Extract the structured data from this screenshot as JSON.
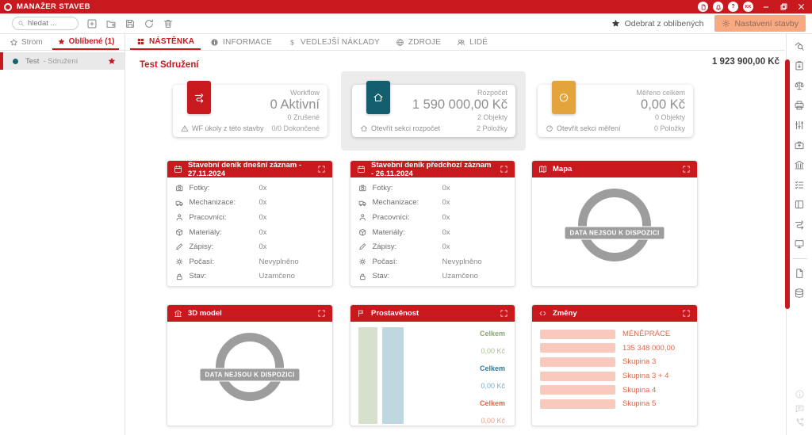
{
  "colors": {
    "primary": "#c8191f",
    "settings_button_bg": "#f7a981",
    "teal": "#135f6f",
    "amber": "#e4a43c"
  },
  "titlebar": {
    "app_title": "MANAŽER STAVEB",
    "help_label": "?",
    "avatar_initials": "KK"
  },
  "toolbar": {
    "search_placeholder": "hledat ...",
    "remove_favorite_label": "Odebrat z oblíbených",
    "settings_label": "Nastavení stavby"
  },
  "sidebar": {
    "tab_tree": "Strom",
    "tab_favorites": "Oblíbené (1)",
    "item_name": "Test",
    "item_type": "- Sdružení"
  },
  "main_tabs": {
    "dashboard": "NÁSTĚNKA",
    "information": "INFORMACE",
    "side_costs": "VEDLEJŠÍ NÁKLADY",
    "resources": "ZDROJE",
    "people": "LIDÉ"
  },
  "page": {
    "project_title": "Test Sdružení",
    "total_amount": "1 923 900,00 Kč"
  },
  "summary_cards": [
    {
      "label": "Workflow",
      "value": "0 Aktivní",
      "stat1": "0 Zrušené",
      "stat2": "0/0 Dokončené",
      "footer": "WF úkoly z této stavby",
      "accent": "#c8191f"
    },
    {
      "label": "Rozpočet",
      "value": "1 590 000,00 Kč",
      "stat1": "2 Objekty",
      "stat2": "2 Položky",
      "footer": "Otevřít sekci rozpočet",
      "accent": "#135f6f"
    },
    {
      "label": "Měřeno celkem",
      "value": "0,00 Kč",
      "stat1": "0 Objekty",
      "stat2": "0 Položky",
      "footer": "Otevřít sekci měření",
      "accent": "#e4a43c"
    }
  ],
  "diary_cards": [
    {
      "title": "Stavební deník dnešní záznam - 27.11.2024",
      "rows": [
        {
          "label": "Fotky:",
          "value": "0x"
        },
        {
          "label": "Mechanizace:",
          "value": "0x"
        },
        {
          "label": "Pracovníci:",
          "value": "0x"
        },
        {
          "label": "Materiály:",
          "value": "0x"
        },
        {
          "label": "Zápisy:",
          "value": "0x"
        },
        {
          "label": "Počasí:",
          "value": "Nevyplněno"
        },
        {
          "label": "Stav:",
          "value": "Uzamčeno"
        }
      ]
    },
    {
      "title": "Stavební deník předchozí záznam - 26.11.2024",
      "rows": [
        {
          "label": "Fotky:",
          "value": "0x"
        },
        {
          "label": "Mechanizace:",
          "value": "0x"
        },
        {
          "label": "Pracovníci:",
          "value": "0x"
        },
        {
          "label": "Materiály:",
          "value": "0x"
        },
        {
          "label": "Zápisy:",
          "value": "0x"
        },
        {
          "label": "Počasí:",
          "value": "Nevyplněno"
        },
        {
          "label": "Stav:",
          "value": "Uzamčeno"
        }
      ]
    }
  ],
  "map_card": {
    "title": "Mapa",
    "empty_text": "DATA NEJSOU K DISPOZICI"
  },
  "model_card": {
    "title": "3D model",
    "empty_text": "DATA NEJSOU K DISPOZICI"
  },
  "prostavenost_card": {
    "title": "Prostavěnost",
    "chart_data": {
      "type": "bar",
      "bars": [
        {
          "name": "Celkem",
          "color": "#d6e0cb"
        },
        {
          "name": "Celkem",
          "color": "#bfd8e0"
        }
      ],
      "entries": [
        {
          "label": "Celkem",
          "value": "0,00 Kč",
          "label_color": "#8aa873",
          "value_color": "#a9c194"
        },
        {
          "label": "Celkem",
          "value": "0,00 Kč",
          "label_color": "#2d7d99",
          "value_color": "#74aec0"
        },
        {
          "label": "Celkem",
          "value": "0,00 Kč",
          "label_color": "#e2654a",
          "value_color": "#ef9d86"
        }
      ]
    }
  },
  "zmeny_card": {
    "title": "Změny",
    "chart_data": {
      "type": "bar",
      "bar_color": "#f9c9bd",
      "label_color": "#e2654a",
      "rows": [
        "MÉNĚPRÁCE",
        "135 348 000,00",
        "Skupina 3",
        "Skupina 3 + 4",
        "Skupina 4",
        "Skupina 5"
      ]
    }
  },
  "rail_icons": [
    "site-search",
    "clipboard-export",
    "scales",
    "printer",
    "equalizer",
    "briefcase-export",
    "bank",
    "task-list",
    "book",
    "workflow",
    "monitor"
  ],
  "rail_icons_secondary": [
    "document",
    "database"
  ],
  "rail_icons_bottom": [
    "info",
    "chat",
    "phone-callback"
  ]
}
